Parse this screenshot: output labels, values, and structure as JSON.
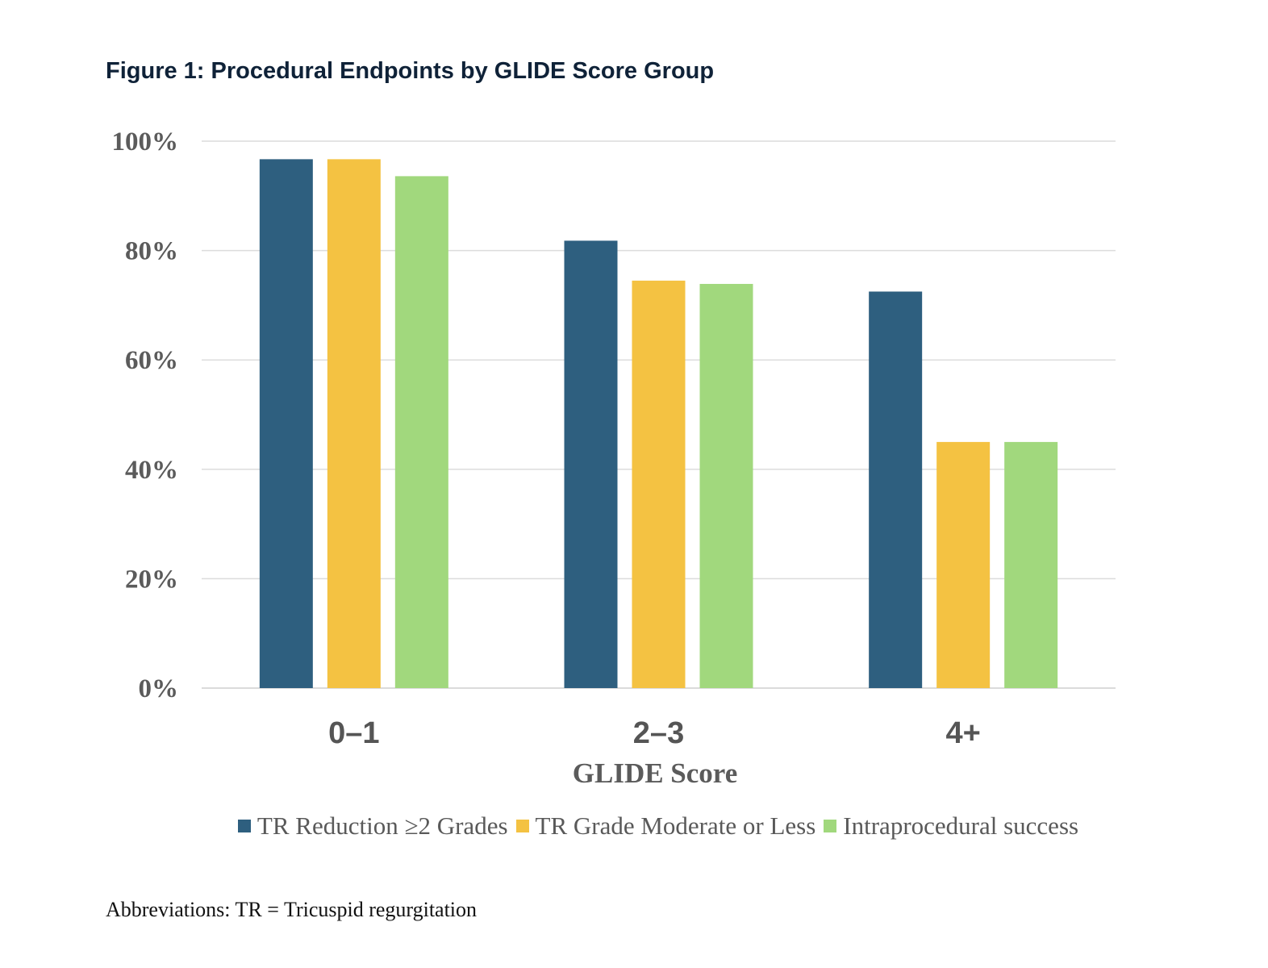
{
  "figure_title": "Figure 1: Procedural Endpoints by GLIDE Score Group",
  "footnote": "Abbreviations: TR = Tricuspid regurgitation",
  "chart_data": {
    "type": "bar",
    "title": "Figure 1: Procedural Endpoints by GLIDE Score Group",
    "xlabel": "GLIDE Score",
    "ylabel": "",
    "categories": [
      "0–1",
      "2–3",
      "4+"
    ],
    "series": [
      {
        "name": "TR Reduction ≥2 Grades",
        "color": "#2e5f7f",
        "values": [
          96.7,
          81.8,
          72.5
        ]
      },
      {
        "name": "TR Grade Moderate or Less",
        "color": "#f4c242",
        "values": [
          96.7,
          74.5,
          45.0
        ]
      },
      {
        "name": "Intraprocedural success",
        "color": "#a1d87d",
        "values": [
          93.6,
          73.9,
          45.0
        ]
      }
    ],
    "ylim": [
      0,
      100
    ],
    "yticks": [
      0,
      20,
      40,
      60,
      80,
      100
    ],
    "ytick_labels": [
      "0%",
      "20%",
      "40%",
      "60%",
      "80%",
      "100%"
    ],
    "grid": true,
    "legend_position": "bottom"
  }
}
